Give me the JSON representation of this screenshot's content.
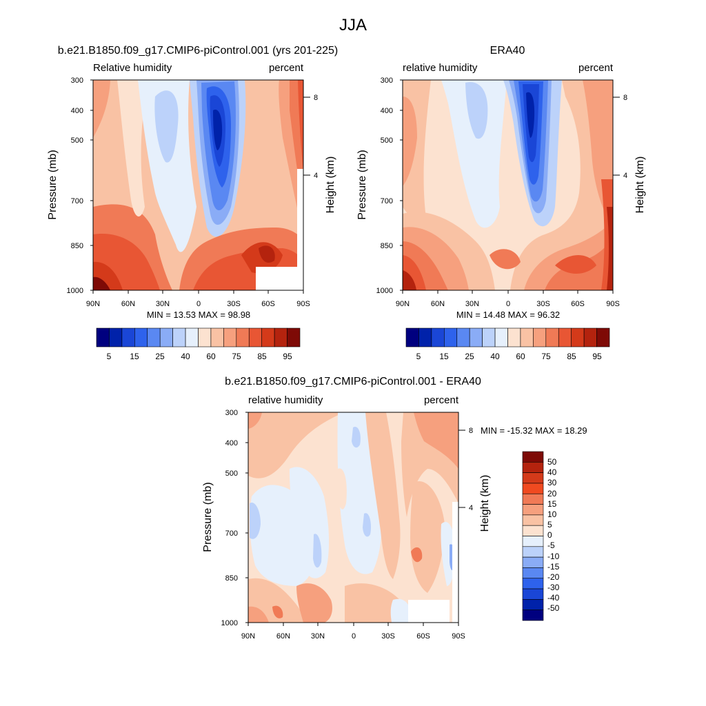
{
  "figure": {
    "title": "JJA"
  },
  "chart_data": [
    {
      "type": "heatmap",
      "id": "model",
      "title": "b.e21.B1850.f09_g17.CMIP6-piControl.001 (yrs 201-225)",
      "left_label": "Relative humidity",
      "right_label": "percent",
      "ylabel": "Pressure (mb)",
      "ylabel_right": "Height (km)",
      "x_ticks": [
        "90N",
        "60N",
        "30N",
        "0",
        "30S",
        "60S",
        "90S"
      ],
      "y_ticks": [
        "300",
        "400",
        "500",
        "700",
        "850",
        "1000"
      ],
      "y_ticks_right": [
        "8",
        "4"
      ],
      "stats": "MIN =  13.53  MAX =  98.98",
      "min": 13.53,
      "max": 98.98,
      "colorbar_labels": [
        "5",
        "15",
        "25",
        "40",
        "60",
        "75",
        "85",
        "95"
      ],
      "ylim": [
        1000,
        300
      ],
      "xlim": [
        "90N",
        "90S"
      ]
    },
    {
      "type": "heatmap",
      "id": "obs",
      "title": "ERA40",
      "left_label": "relative humidity",
      "right_label": "percent",
      "ylabel": "Pressure (mb)",
      "ylabel_right": "Height (km)",
      "x_ticks": [
        "90N",
        "60N",
        "30N",
        "0",
        "30S",
        "60S",
        "90S"
      ],
      "y_ticks": [
        "300",
        "400",
        "500",
        "700",
        "850",
        "1000"
      ],
      "y_ticks_right": [
        "8",
        "4"
      ],
      "stats": "MIN =  14.48  MAX =  96.32",
      "min": 14.48,
      "max": 96.32,
      "colorbar_labels": [
        "5",
        "15",
        "25",
        "40",
        "60",
        "75",
        "85",
        "95"
      ],
      "ylim": [
        1000,
        300
      ],
      "xlim": [
        "90N",
        "90S"
      ]
    },
    {
      "type": "heatmap",
      "id": "diff",
      "title": "b.e21.B1850.f09_g17.CMIP6-piControl.001 - ERA40",
      "left_label": "relative humidity",
      "right_label": "percent",
      "ylabel": "Pressure (mb)",
      "ylabel_right": "Height (km)",
      "x_ticks": [
        "90N",
        "60N",
        "30N",
        "0",
        "30S",
        "60S",
        "90S"
      ],
      "y_ticks": [
        "300",
        "400",
        "500",
        "700",
        "850",
        "1000"
      ],
      "y_ticks_right": [
        "8",
        "4"
      ],
      "stats": "MIN = -15.32  MAX =  18.29",
      "min": -15.32,
      "max": 18.29,
      "colorbar_labels": [
        "50",
        "40",
        "30",
        "20",
        "15",
        "10",
        "5",
        "0",
        "-5",
        "-10",
        "-15",
        "-20",
        "-30",
        "-40",
        "-50"
      ],
      "ylim": [
        1000,
        300
      ],
      "xlim": [
        "90N",
        "90S"
      ]
    }
  ],
  "colors": {
    "abs_scale": [
      "#00007f",
      "#0022aa",
      "#1a46d6",
      "#2e62ec",
      "#5a88f2",
      "#8aacf6",
      "#bcd2fa",
      "#e6f0fc",
      "#fce2d0",
      "#f9c2a4",
      "#f6a07e",
      "#f07a56",
      "#e85634",
      "#d43a1a",
      "#b4230e",
      "#7e0a06"
    ],
    "diff_scale": [
      "#7e0a06",
      "#b4230e",
      "#d43a1a",
      "#f04a20",
      "#f07a56",
      "#f6a07e",
      "#f9c2a4",
      "#fce2d0",
      "#e6f0fc",
      "#bcd2fa",
      "#8aacf6",
      "#5a88f2",
      "#2e62ec",
      "#1a46d6",
      "#0022aa",
      "#00007f"
    ]
  }
}
